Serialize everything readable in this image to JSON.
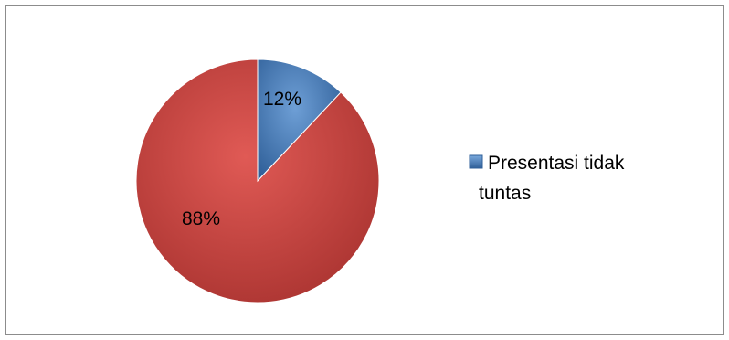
{
  "chart_data": {
    "type": "pie",
    "title": "",
    "slices": [
      {
        "label": "Presentasi tidak tuntas",
        "value": 12,
        "data_label": "12%",
        "color": "#4a7ebb"
      },
      {
        "label": "",
        "value": 88,
        "data_label": "88%",
        "color": "#c0504d"
      }
    ],
    "start_angle_deg": 0,
    "direction": "clockwise",
    "style": "3d-shaded",
    "legend": {
      "position": "right",
      "entries": [
        {
          "line1": "Presentasi tidak",
          "line2": "tuntas",
          "color": "#4a7ebb"
        }
      ]
    }
  }
}
